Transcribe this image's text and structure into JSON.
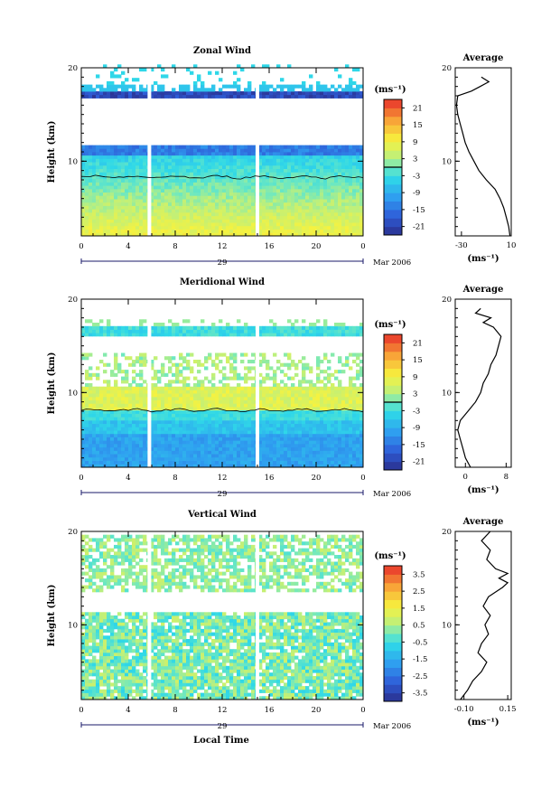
{
  "figure": {
    "xlabel": "Local Time",
    "date_label": "Mar 2006",
    "day_label": "29",
    "avg_title": "Average",
    "unit": "(ms⁻¹)",
    "ylabel": "Height (km)"
  },
  "chart_data": [
    {
      "type": "heatmap",
      "title": "Zonal Wind",
      "xlabel": "Local Time",
      "ylabel": "Height (km)",
      "x_ticks": [
        "0",
        "4",
        "8",
        "12",
        "16",
        "20",
        "0"
      ],
      "x_range": [
        0,
        24
      ],
      "y_ticks": [
        "10",
        "20"
      ],
      "y_range": [
        2,
        20
      ],
      "colorbar": {
        "unit": "(ms⁻¹)",
        "ticks": [
          "21",
          "15",
          "9",
          "3",
          "-3",
          "-9",
          "-15",
          "-21"
        ],
        "range": [
          -24,
          24
        ]
      },
      "data_gaps_hours": [
        5.8,
        15.0
      ],
      "profile": {
        "title": "Average",
        "xlabel": "(ms⁻¹)",
        "x_ticks": [
          "-30",
          "10"
        ],
        "x_range": [
          -35,
          10
        ],
        "heights": [
          2,
          3,
          4,
          5,
          6,
          7,
          8,
          9,
          10,
          11,
          12,
          13,
          14,
          15,
          16,
          17,
          17.5,
          18,
          18.5,
          19
        ],
        "values": [
          9,
          8,
          6,
          4,
          1,
          -3,
          -10,
          -16,
          -20,
          -24,
          -27,
          -29,
          -31,
          -33,
          -34,
          -33,
          -22,
          -15,
          -8,
          -14
        ]
      }
    },
    {
      "type": "heatmap",
      "title": "Meridional Wind",
      "xlabel": "Local Time",
      "ylabel": "Height (km)",
      "x_ticks": [
        "0",
        "4",
        "8",
        "12",
        "16",
        "20",
        "0"
      ],
      "x_range": [
        0,
        24
      ],
      "y_ticks": [
        "10",
        "20"
      ],
      "y_range": [
        2,
        20
      ],
      "colorbar": {
        "unit": "(ms⁻¹)",
        "ticks": [
          "21",
          "15",
          "9",
          "3",
          "-3",
          "-9",
          "-15",
          "-21"
        ],
        "range": [
          -24,
          24
        ]
      },
      "data_gaps_hours": [
        5.8,
        15.0
      ],
      "profile": {
        "title": "Average",
        "xlabel": "(ms⁻¹)",
        "x_ticks": [
          "0",
          "8"
        ],
        "x_range": [
          -2,
          9
        ],
        "heights": [
          2,
          3,
          4,
          5,
          6,
          7,
          8,
          9,
          10,
          11,
          12,
          13,
          14,
          15,
          16,
          17,
          17.5,
          18,
          18.5,
          19
        ],
        "values": [
          1,
          0,
          -0.5,
          -1,
          -1.5,
          -1,
          0.5,
          2,
          3,
          3.5,
          4.5,
          5,
          6,
          6.5,
          7,
          5.5,
          3.5,
          5,
          2,
          3
        ]
      }
    },
    {
      "type": "heatmap",
      "title": "Vertical Wind",
      "xlabel": "Local Time",
      "ylabel": "Height (km)",
      "x_ticks": [
        "0",
        "4",
        "8",
        "12",
        "16",
        "20",
        "0"
      ],
      "x_range": [
        0,
        24
      ],
      "y_ticks": [
        "10",
        "20"
      ],
      "y_range": [
        2,
        20
      ],
      "colorbar": {
        "unit": "(ms⁻¹)",
        "ticks": [
          "3.5",
          "2.5",
          "1.5",
          "0.5",
          "-0.5",
          "-1.5",
          "-2.5",
          "-3.5"
        ],
        "range": [
          -4,
          4
        ]
      },
      "data_gaps_hours": [
        5.8,
        15.0
      ],
      "profile": {
        "title": "Average",
        "xlabel": "(ms⁻¹)",
        "x_ticks": [
          "-0.10",
          "0.15"
        ],
        "x_range": [
          -0.15,
          0.17
        ],
        "heights": [
          2,
          3,
          4,
          5,
          6,
          7,
          8,
          9,
          10,
          11,
          12,
          13,
          14,
          14.5,
          15,
          15.5,
          16,
          17,
          18,
          19,
          20
        ],
        "values": [
          -0.12,
          -0.08,
          -0.05,
          0.0,
          0.03,
          -0.02,
          0.0,
          0.04,
          0.02,
          0.05,
          0.01,
          0.04,
          0.12,
          0.15,
          0.1,
          0.15,
          0.08,
          0.03,
          0.05,
          0.0,
          0.05
        ]
      }
    }
  ]
}
